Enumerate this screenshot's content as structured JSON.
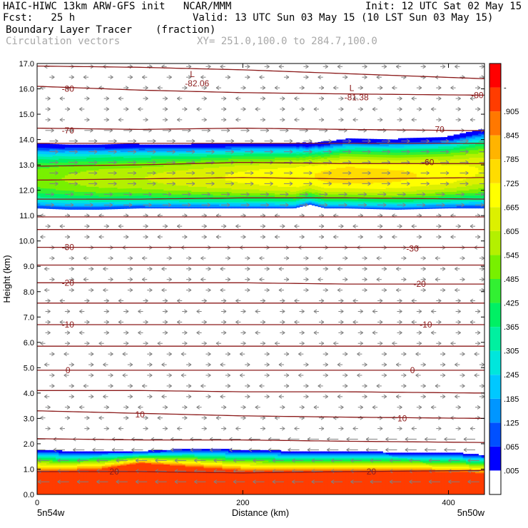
{
  "header": {
    "line1_left": "HAIC-HIWC 13km ARW-GFS init   NCAR/MMM",
    "line1_right": "Init: 12 UTC Sat 02 May 15",
    "line2_left": "Fcst:   25 h",
    "line2_right": "Valid: 13 UTC Sun 03 May 15 (10 LST Sun 03 May 15)",
    "field_name": "Boundary Layer Tracer",
    "field_units": "(fraction)",
    "vectors_label": "Circulation vectors",
    "cross_section": "XY= 251.0,100.0 to 284.7,100.0"
  },
  "colors": {
    "contour": "#8b1a1a",
    "vector": "#808080",
    "header_gray": "#a8a8a8"
  },
  "chart_data": {
    "type": "heatmap",
    "title": "Boundary Layer Tracer",
    "xlabel": "Distance (km)",
    "ylabel": "Height (km)",
    "xlim": [
      0,
      435
    ],
    "ylim": [
      0,
      17
    ],
    "x_ticks": [
      0,
      200,
      400
    ],
    "x_tick_labels": [
      "0",
      "200",
      "400"
    ],
    "y_ticks": [
      0,
      1,
      2,
      3,
      4,
      5,
      6,
      7,
      8,
      9,
      10,
      11,
      12,
      13,
      14,
      15,
      16,
      17
    ],
    "y_tick_labels": [
      "0.0",
      "1.0",
      "2.0",
      "3.0",
      "4.0",
      "5.0",
      "6.0",
      "7.0",
      "8.0",
      "9.0",
      "10.0",
      "11.0",
      "12.0",
      "13.0",
      "14.0",
      "15.0",
      "16.0",
      "17.0"
    ],
    "endpoint_labels": [
      "5n54w",
      "5n50w"
    ],
    "colorbar": {
      "labels": [
        ".005",
        ".065",
        ".125",
        ".185",
        ".245",
        ".305",
        ".365",
        ".425",
        ".485",
        ".545",
        ".605",
        ".665",
        ".725",
        ".785",
        ".845",
        ".905",
        "-"
      ],
      "colors": [
        "#ffffff",
        "#0000ff",
        "#0050ff",
        "#0096ff",
        "#00c8ff",
        "#00e6dc",
        "#00f0a0",
        "#00f064",
        "#32f032",
        "#78f000",
        "#b4f000",
        "#dcf000",
        "#ffff00",
        "#ffdc00",
        "#ffb400",
        "#ff7800",
        "#ff3c00",
        "#ff0000"
      ]
    },
    "upper_layer": {
      "x": [
        0,
        30,
        60,
        100,
        150,
        200,
        250,
        265,
        280,
        300,
        350,
        400,
        435
      ],
      "base": [
        11.3,
        11.25,
        11.25,
        11.3,
        11.3,
        11.3,
        11.3,
        11.45,
        11.3,
        11.3,
        11.25,
        11.3,
        11.3
      ],
      "top": [
        13.8,
        13.8,
        13.8,
        13.8,
        13.8,
        13.85,
        13.85,
        13.85,
        13.9,
        14.0,
        14.0,
        14.1,
        14.4
      ],
      "peak": [
        0.52,
        0.55,
        0.58,
        0.6,
        0.64,
        0.68,
        0.72,
        0.72,
        0.74,
        0.76,
        0.74,
        0.7,
        0.66
      ]
    },
    "boundary_layer": {
      "x": [
        0,
        30,
        60,
        100,
        150,
        200,
        250,
        300,
        350,
        400,
        435
      ],
      "top": [
        1.75,
        1.7,
        1.7,
        1.7,
        1.8,
        1.75,
        1.7,
        1.7,
        1.65,
        1.65,
        1.55
      ],
      "red_top": [
        0.95,
        0.95,
        1.0,
        1.25,
        1.1,
        0.95,
        0.95,
        0.95,
        0.95,
        0.9,
        0.85
      ]
    },
    "contours": [
      {
        "label": "-80",
        "x": [
          0,
          100,
          200,
          300,
          435
        ],
        "y": [
          16.1,
          15.95,
          15.85,
          15.8,
          15.75
        ],
        "label_at": [
          [
            30,
            16.0
          ],
          [
            428,
            15.75
          ]
        ]
      },
      {
        "label": "-70",
        "x": [
          0,
          100,
          200,
          300,
          435
        ],
        "y": [
          14.45,
          14.4,
          14.45,
          14.4,
          14.35
        ],
        "label_at": [
          [
            30,
            14.35
          ],
          [
            390,
            14.4
          ]
        ]
      },
      {
        "label": "-60",
        "x": [
          0,
          100,
          200,
          300,
          435
        ],
        "y": [
          12.95,
          13.0,
          13.1,
          13.05,
          13.05
        ],
        "label_at": [
          [
            380,
            13.1
          ]
        ]
      },
      {
        "label": "",
        "x": [
          0,
          100,
          200,
          300,
          435
        ],
        "y": [
          16.9,
          16.85,
          16.75,
          16.6,
          16.4
        ],
        "label_at": []
      },
      {
        "label": "",
        "x": [
          0,
          100,
          200,
          300,
          435
        ],
        "y": [
          13.85,
          13.85,
          13.85,
          13.85,
          13.85
        ],
        "label_at": []
      },
      {
        "label": "",
        "x": [
          0,
          100,
          200,
          300,
          435
        ],
        "y": [
          12.4,
          12.45,
          12.5,
          12.45,
          12.5
        ],
        "label_at": []
      },
      {
        "label": "",
        "x": [
          0,
          100,
          200,
          300,
          435
        ],
        "y": [
          11.65,
          11.65,
          11.7,
          11.7,
          11.65
        ],
        "label_at": []
      },
      {
        "label": "",
        "x": [
          0,
          100,
          200,
          300,
          435
        ],
        "y": [
          10.95,
          10.95,
          10.95,
          10.95,
          10.95
        ],
        "label_at": []
      },
      {
        "label": "",
        "x": [
          0,
          100,
          200,
          300,
          435
        ],
        "y": [
          10.45,
          10.45,
          10.45,
          10.45,
          10.45
        ],
        "label_at": []
      },
      {
        "label": "-30",
        "x": [
          0,
          100,
          200,
          300,
          435
        ],
        "y": [
          9.75,
          9.75,
          9.75,
          9.75,
          9.75
        ],
        "label_at": [
          [
            30,
            9.75
          ],
          [
            365,
            9.7
          ]
        ]
      },
      {
        "label": "",
        "x": [
          0,
          100,
          200,
          300,
          435
        ],
        "y": [
          9.05,
          9.05,
          9.05,
          9.05,
          9.05
        ],
        "label_at": []
      },
      {
        "label": "-20",
        "x": [
          0,
          100,
          200,
          300,
          435
        ],
        "y": [
          8.35,
          8.35,
          8.35,
          8.3,
          8.3
        ],
        "label_at": [
          [
            30,
            8.35
          ],
          [
            372,
            8.3
          ]
        ]
      },
      {
        "label": "",
        "x": [
          0,
          100,
          200,
          300,
          435
        ],
        "y": [
          7.55,
          7.55,
          7.55,
          7.55,
          7.55
        ],
        "label_at": []
      },
      {
        "label": "-10",
        "x": [
          0,
          100,
          200,
          300,
          435
        ],
        "y": [
          6.7,
          6.7,
          6.7,
          6.7,
          6.7
        ],
        "label_at": [
          [
            30,
            6.7
          ],
          [
            378,
            6.7
          ]
        ]
      },
      {
        "label": "",
        "x": [
          0,
          100,
          200,
          300,
          435
        ],
        "y": [
          5.85,
          5.85,
          5.85,
          5.85,
          5.85
        ],
        "label_at": []
      },
      {
        "label": "0",
        "x": [
          0,
          100,
          200,
          300,
          435
        ],
        "y": [
          4.9,
          4.9,
          4.9,
          4.9,
          4.9
        ],
        "label_at": [
          [
            30,
            4.9
          ],
          [
            365,
            4.9
          ]
        ]
      },
      {
        "label": "",
        "x": [
          0,
          100,
          200,
          300,
          435
        ],
        "y": [
          4.1,
          4.1,
          4.05,
          4.05,
          4.0
        ],
        "label_at": []
      },
      {
        "label": "10",
        "x": [
          0,
          100,
          200,
          300,
          435
        ],
        "y": [
          3.3,
          3.2,
          3.1,
          3.05,
          3.0
        ],
        "label_at": [
          [
            100,
            3.15
          ],
          [
            355,
            3.0
          ]
        ]
      },
      {
        "label": "",
        "x": [
          0,
          100,
          200,
          300,
          435
        ],
        "y": [
          2.2,
          2.15,
          2.15,
          2.1,
          2.05
        ],
        "label_at": []
      },
      {
        "label": "20",
        "x": [
          0,
          100,
          200,
          300,
          435
        ],
        "y": [
          0.9,
          0.9,
          0.85,
          0.9,
          0.95
        ],
        "label_at": [
          [
            75,
            0.9
          ],
          [
            325,
            0.9
          ]
        ]
      }
    ],
    "lows": [
      {
        "label": "L",
        "value": "-82.06",
        "x": 150,
        "y": 16.55
      },
      {
        "label": "L",
        "value": "-81.38",
        "x": 305,
        "y": 16.0
      }
    ]
  }
}
